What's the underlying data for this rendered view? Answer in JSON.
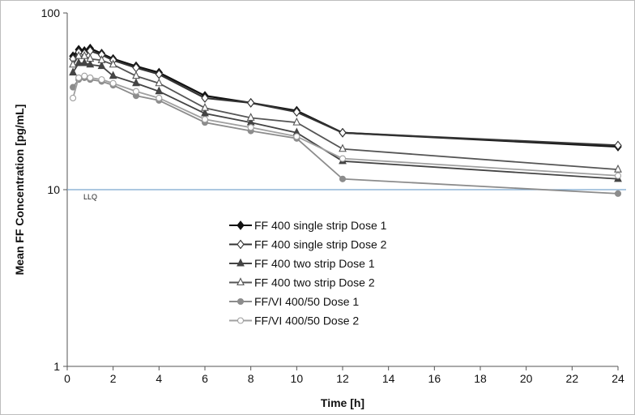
{
  "chart_data": {
    "type": "line",
    "title": "",
    "xlabel": "Time [h]",
    "ylabel": "Mean FF Concentration [pg/mL]",
    "xlim": [
      0,
      24
    ],
    "ylim": [
      1,
      100
    ],
    "yscale": "log",
    "xticks": [
      "0",
      "2",
      "4",
      "6",
      "8",
      "10",
      "12",
      "14",
      "16",
      "18",
      "20",
      "22",
      "24"
    ],
    "yticks": [
      "1",
      "10",
      "100"
    ],
    "grid": false,
    "legend_position": "center",
    "reference_line": {
      "label": "LLQ",
      "y": 10,
      "color": "#7ba7cf"
    },
    "series": [
      {
        "name": "FF 400 single strip Dose 1",
        "color": "#111111",
        "marker": "diamond",
        "fill": "filled",
        "x": [
          0.25,
          0.5,
          0.75,
          1,
          1.5,
          2,
          3,
          4,
          6,
          8,
          10,
          12,
          24
        ],
        "y": [
          57,
          62,
          61,
          63,
          59,
          55,
          50,
          46,
          34,
          31,
          28,
          21,
          17.5
        ]
      },
      {
        "name": "FF 400 single strip Dose 2",
        "color": "#333333",
        "marker": "diamond",
        "fill": "open",
        "x": [
          0.25,
          0.5,
          0.75,
          1,
          1.5,
          2,
          3,
          4,
          6,
          8,
          10,
          12,
          24
        ],
        "y": [
          55,
          60,
          59,
          61,
          58,
          54,
          49,
          45,
          33,
          31,
          27.5,
          21,
          17.8
        ]
      },
      {
        "name": "FF 400 two strip Dose 1",
        "color": "#444444",
        "marker": "triangle",
        "fill": "filled",
        "x": [
          0.25,
          0.5,
          0.75,
          1,
          1.5,
          2,
          3,
          4,
          6,
          8,
          10,
          12,
          24
        ],
        "y": [
          46,
          52,
          52,
          51,
          50,
          44,
          40,
          36,
          27,
          24,
          21,
          14.5,
          11.5
        ]
      },
      {
        "name": "FF 400 two strip Dose 2",
        "color": "#555555",
        "marker": "triangle",
        "fill": "open",
        "x": [
          0.25,
          0.5,
          0.75,
          1,
          1.5,
          2,
          3,
          4,
          6,
          8,
          10,
          12,
          24
        ],
        "y": [
          51,
          57,
          57,
          55,
          54,
          51,
          44,
          40,
          29,
          25.5,
          24,
          17,
          13
        ]
      },
      {
        "name": "FF/VI 400/50 Dose 1",
        "color": "#8c8c8c",
        "marker": "circle",
        "fill": "filled",
        "x": [
          0.25,
          0.5,
          0.75,
          1,
          1.5,
          2,
          3,
          4,
          6,
          8,
          10,
          12,
          24
        ],
        "y": [
          38,
          42,
          43,
          42,
          41,
          39,
          34,
          32,
          24,
          21.5,
          19.5,
          11.5,
          9.5
        ]
      },
      {
        "name": "FF/VI 400/50 Dose 2",
        "color": "#a0a0a0",
        "marker": "circle",
        "fill": "open",
        "x": [
          0.25,
          0.5,
          0.75,
          1,
          1.5,
          2,
          3,
          4,
          6,
          8,
          10,
          12,
          24
        ],
        "y": [
          33,
          43,
          44,
          43,
          42,
          40,
          36,
          33,
          25,
          22.5,
          20,
          15,
          12
        ]
      }
    ]
  }
}
